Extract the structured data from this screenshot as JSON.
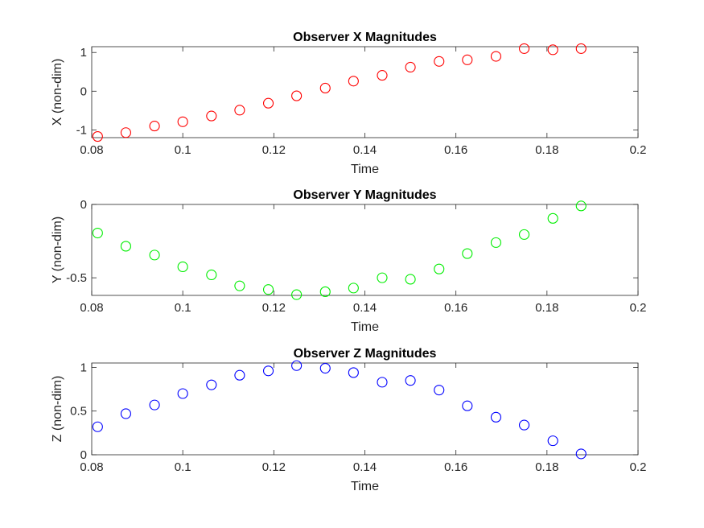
{
  "chart_data": [
    {
      "type": "scatter",
      "title": "Observer X Magnitudes",
      "xlabel": "Time",
      "ylabel": "X (non-dim)",
      "xlim": [
        0.08,
        0.2
      ],
      "ylim": [
        -1.2,
        1.15
      ],
      "xticks": [
        0.08,
        0.1,
        0.12,
        0.14,
        0.16,
        0.18,
        0.2
      ],
      "xtick_labels": [
        "0.08",
        "0.1",
        "0.12",
        "0.14",
        "0.16",
        "0.18",
        "0.2"
      ],
      "yticks": [
        -1,
        0,
        1
      ],
      "ytick_labels": [
        "-1",
        "0",
        "1"
      ],
      "color": "#ff0000",
      "marker": "circle-open",
      "series": [
        {
          "x": [
            0.0813,
            0.0875,
            0.0938,
            0.1,
            0.1063,
            0.1125,
            0.1188,
            0.125,
            0.1313,
            0.1375,
            0.1438,
            0.15,
            0.1563,
            0.1625,
            0.1688,
            0.175,
            0.1813,
            0.1875
          ],
          "y": [
            -1.17,
            -1.07,
            -0.9,
            -0.79,
            -0.64,
            -0.49,
            -0.31,
            -0.12,
            0.08,
            0.26,
            0.41,
            0.62,
            0.77,
            0.81,
            0.9,
            1.1,
            1.07,
            1.1
          ]
        }
      ]
    },
    {
      "type": "scatter",
      "title": "Observer Y Magnitudes",
      "xlabel": "Time",
      "ylabel": "Y (non-dim)",
      "xlim": [
        0.08,
        0.2
      ],
      "ylim": [
        -0.62,
        0.0
      ],
      "xticks": [
        0.08,
        0.1,
        0.12,
        0.14,
        0.16,
        0.18,
        0.2
      ],
      "xtick_labels": [
        "0.08",
        "0.1",
        "0.12",
        "0.14",
        "0.16",
        "0.18",
        "0.2"
      ],
      "yticks": [
        -0.5,
        0
      ],
      "ytick_labels": [
        "-0.5",
        "0"
      ],
      "color": "#00ee00",
      "marker": "circle-open",
      "series": [
        {
          "x": [
            0.0813,
            0.0875,
            0.0938,
            0.1,
            0.1063,
            0.1125,
            0.1188,
            0.125,
            0.1313,
            0.1375,
            0.1438,
            0.15,
            0.1563,
            0.1625,
            0.1688,
            0.175,
            0.1813,
            0.1875
          ],
          "y": [
            -0.195,
            -0.285,
            -0.345,
            -0.425,
            -0.48,
            -0.555,
            -0.58,
            -0.615,
            -0.595,
            -0.57,
            -0.5,
            -0.51,
            -0.44,
            -0.335,
            -0.26,
            -0.205,
            -0.095,
            -0.01
          ]
        }
      ]
    },
    {
      "type": "scatter",
      "title": "Observer Z Magnitudes",
      "xlabel": "Time",
      "ylabel": "Z (non-dim)",
      "xlim": [
        0.08,
        0.2
      ],
      "ylim": [
        0,
        1.05
      ],
      "xticks": [
        0.08,
        0.1,
        0.12,
        0.14,
        0.16,
        0.18,
        0.2
      ],
      "xtick_labels": [
        "0.08",
        "0.1",
        "0.12",
        "0.14",
        "0.16",
        "0.18",
        "0.2"
      ],
      "yticks": [
        0,
        0.5,
        1
      ],
      "ytick_labels": [
        "0",
        "0.5",
        "1"
      ],
      "color": "#0000ff",
      "marker": "circle-open",
      "series": [
        {
          "x": [
            0.0813,
            0.0875,
            0.0938,
            0.1,
            0.1063,
            0.1125,
            0.1188,
            0.125,
            0.1313,
            0.1375,
            0.1438,
            0.15,
            0.1563,
            0.1625,
            0.1688,
            0.175,
            0.1813,
            0.1875
          ],
          "y": [
            0.32,
            0.47,
            0.57,
            0.7,
            0.8,
            0.91,
            0.96,
            1.02,
            0.99,
            0.94,
            0.83,
            0.85,
            0.74,
            0.56,
            0.43,
            0.34,
            0.16,
            0.01
          ]
        }
      ]
    }
  ]
}
